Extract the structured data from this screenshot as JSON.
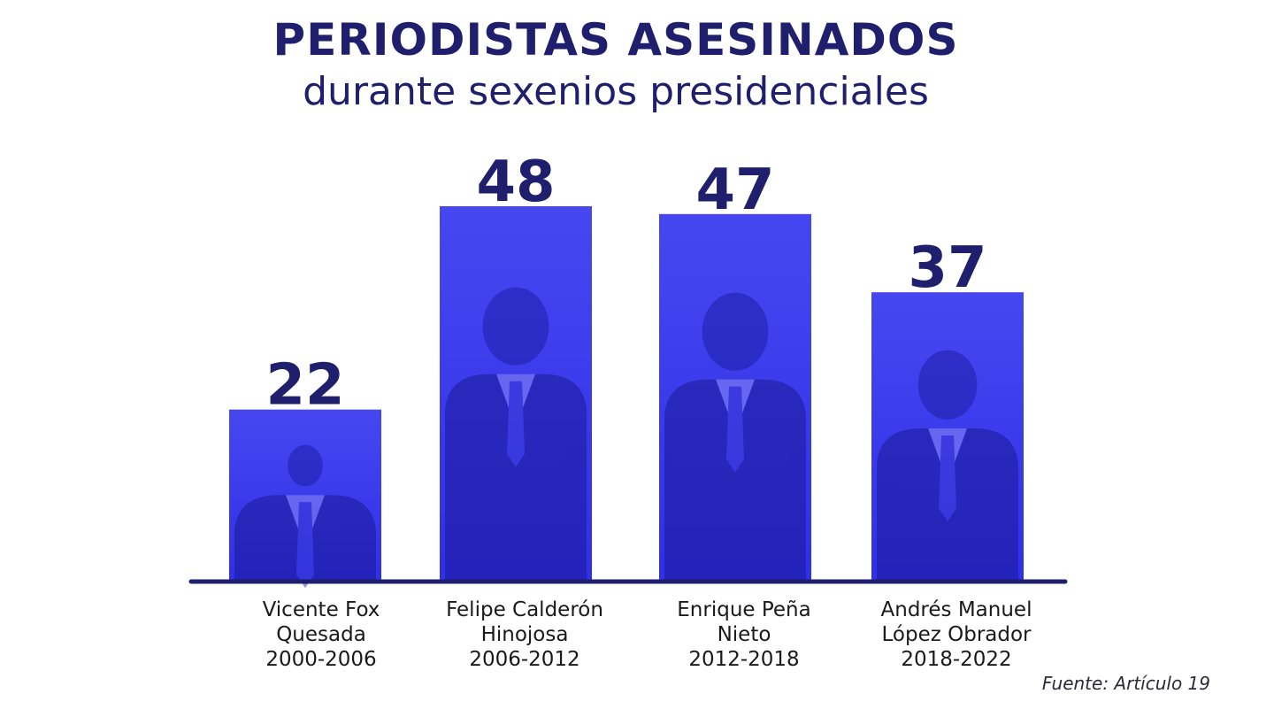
{
  "header": {
    "title": "PERIODISTAS ASESINADOS",
    "subtitle": "durante sexenios presidenciales"
  },
  "source": "Fuente: Artículo 19",
  "colors": {
    "bar": "#2f2fe8",
    "bar_light": "#4747f0",
    "text": "#1f1f6e",
    "baseline": "#1f1f6e"
  },
  "chart_data": {
    "type": "bar",
    "title": "PERIODISTAS ASESINADOS",
    "subtitle": "durante sexenios presidenciales",
    "categories": [
      [
        "Vicente Fox",
        "Quesada",
        "2000-2006"
      ],
      [
        "Felipe Calderón",
        "Hinojosa",
        "2006-2012"
      ],
      [
        "Enrique Peña",
        "Nieto",
        "2012-2018"
      ],
      [
        "Andrés Manuel",
        "López Obrador",
        "2018-2022"
      ]
    ],
    "values": [
      22,
      48,
      47,
      37
    ],
    "data_labels": [
      "22",
      "48",
      "47",
      "37"
    ],
    "ylim": [
      0,
      48
    ],
    "grid": false,
    "legend": "none",
    "bar_fill": "photographs of each president, blue-tinted"
  }
}
